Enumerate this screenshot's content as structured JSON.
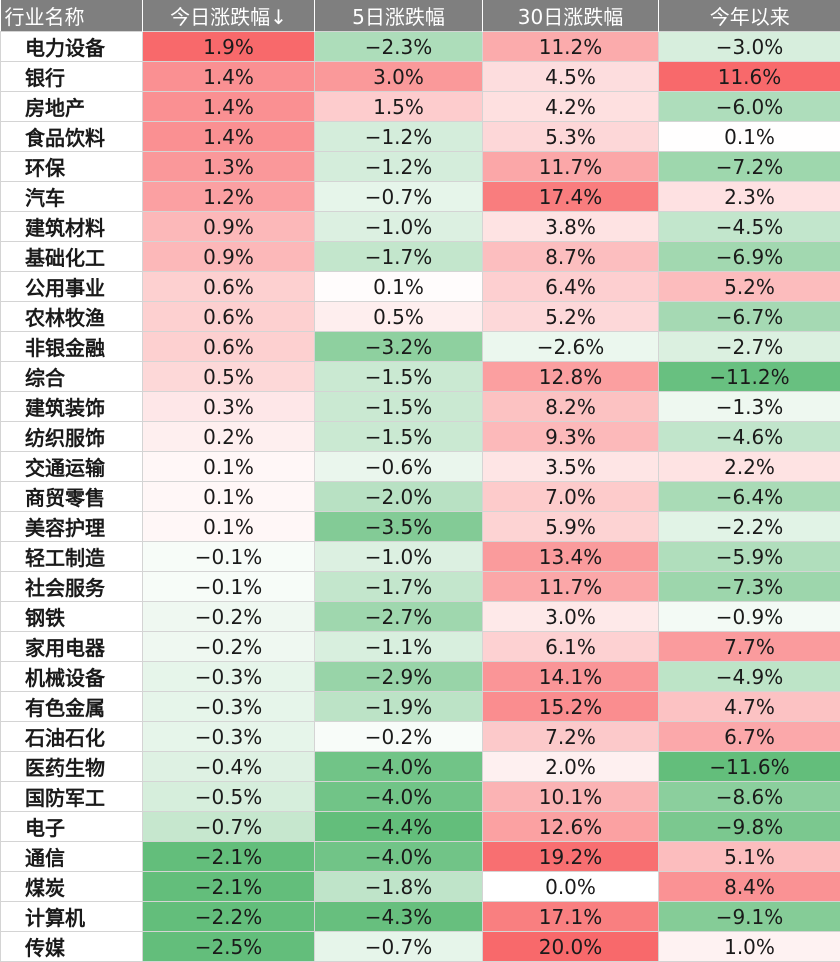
{
  "chart_data": {
    "type": "table",
    "columns": [
      "行业名称",
      "今日涨跌幅↓",
      "5日涨跌幅",
      "30日涨跌幅",
      "今年以来"
    ],
    "rows": [
      [
        "电力设备",
        "1.9%",
        "−2.3%",
        "11.2%",
        "−3.0%"
      ],
      [
        "银行",
        "1.4%",
        "3.0%",
        "4.5%",
        "11.6%"
      ],
      [
        "房地产",
        "1.4%",
        "1.5%",
        "4.2%",
        "−6.0%"
      ],
      [
        "食品饮料",
        "1.4%",
        "−1.2%",
        "5.3%",
        "0.1%"
      ],
      [
        "环保",
        "1.3%",
        "−1.2%",
        "11.7%",
        "−7.2%"
      ],
      [
        "汽车",
        "1.2%",
        "−0.7%",
        "17.4%",
        "2.3%"
      ],
      [
        "建筑材料",
        "0.9%",
        "−1.0%",
        "3.8%",
        "−4.5%"
      ],
      [
        "基础化工",
        "0.9%",
        "−1.7%",
        "8.7%",
        "−6.9%"
      ],
      [
        "公用事业",
        "0.6%",
        "0.1%",
        "6.4%",
        "5.2%"
      ],
      [
        "农林牧渔",
        "0.6%",
        "0.5%",
        "5.2%",
        "−6.7%"
      ],
      [
        "非银金融",
        "0.6%",
        "−3.2%",
        "−2.6%",
        "−2.7%"
      ],
      [
        "综合",
        "0.5%",
        "−1.5%",
        "12.8%",
        "−11.2%"
      ],
      [
        "建筑装饰",
        "0.3%",
        "−1.5%",
        "8.2%",
        "−1.3%"
      ],
      [
        "纺织服饰",
        "0.2%",
        "−1.5%",
        "9.3%",
        "−4.6%"
      ],
      [
        "交通运输",
        "0.1%",
        "−0.6%",
        "3.5%",
        "2.2%"
      ],
      [
        "商贸零售",
        "0.1%",
        "−2.0%",
        "7.0%",
        "−6.4%"
      ],
      [
        "美容护理",
        "0.1%",
        "−3.5%",
        "5.9%",
        "−2.2%"
      ],
      [
        "轻工制造",
        "−0.1%",
        "−1.0%",
        "13.4%",
        "−5.9%"
      ],
      [
        "社会服务",
        "−0.1%",
        "−1.7%",
        "11.7%",
        "−7.3%"
      ],
      [
        "钢铁",
        "−0.2%",
        "−2.7%",
        "3.0%",
        "−0.9%"
      ],
      [
        "家用电器",
        "−0.2%",
        "−1.1%",
        "6.1%",
        "7.7%"
      ],
      [
        "机械设备",
        "−0.3%",
        "−2.9%",
        "14.1%",
        "−4.9%"
      ],
      [
        "有色金属",
        "−0.3%",
        "−1.9%",
        "15.2%",
        "4.7%"
      ],
      [
        "石油石化",
        "−0.3%",
        "−0.2%",
        "7.2%",
        "6.7%"
      ],
      [
        "医药生物",
        "−0.4%",
        "−4.0%",
        "2.0%",
        "−11.6%"
      ],
      [
        "国防军工",
        "−0.5%",
        "−4.0%",
        "10.1%",
        "−8.6%"
      ],
      [
        "电子",
        "−0.7%",
        "−4.4%",
        "12.6%",
        "−9.8%"
      ],
      [
        "通信",
        "−2.1%",
        "−4.0%",
        "19.2%",
        "5.1%"
      ],
      [
        "煤炭",
        "−2.1%",
        "−1.8%",
        "0.0%",
        "8.4%"
      ],
      [
        "计算机",
        "−2.2%",
        "−4.3%",
        "17.1%",
        "−9.1%"
      ],
      [
        "传媒",
        "−2.5%",
        "−0.7%",
        "20.0%",
        "1.0%"
      ]
    ],
    "scale_max": [
      1.9,
      4.4,
      20.0,
      11.6
    ],
    "colors": {
      "positive": "#f8696b",
      "negative": "#63be7b",
      "neutral": "#ffffff",
      "header_bg": "#7f7f7f",
      "header_text": "#ffffff",
      "grid": "#d4d4d4"
    }
  }
}
